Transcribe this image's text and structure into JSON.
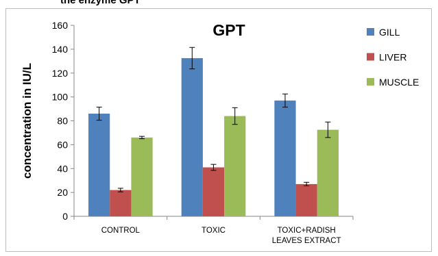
{
  "caption": "the enzyme GPT",
  "chart_data": {
    "type": "bar",
    "title": "GPT",
    "ylabel": "concentration in IU/L",
    "xlabel": "",
    "ylim": [
      0,
      160
    ],
    "yticks": [
      0,
      20,
      40,
      60,
      80,
      100,
      120,
      140,
      160
    ],
    "categories": [
      "CONTROL",
      "TOXIC",
      "TOXIC+RADISH LEAVES EXTRACT"
    ],
    "category_lines": [
      [
        "CONTROL"
      ],
      [
        "TOXIC"
      ],
      [
        "TOXIC+RADISH",
        "LEAVES EXTRACT"
      ]
    ],
    "series": [
      {
        "name": "GILL",
        "color": "#4f81bd",
        "values": [
          86,
          132.5,
          97
        ],
        "errors": [
          5.5,
          9,
          5.5
        ]
      },
      {
        "name": "LIVER",
        "color": "#c0504d",
        "values": [
          22,
          41,
          27
        ],
        "errors": [
          1.5,
          2.5,
          1.5
        ]
      },
      {
        "name": "MUSCLE",
        "color": "#9bbb59",
        "values": [
          66,
          84,
          72.5
        ],
        "errors": [
          1,
          7,
          6.5
        ]
      }
    ],
    "legend_position": "right",
    "grid": false
  }
}
